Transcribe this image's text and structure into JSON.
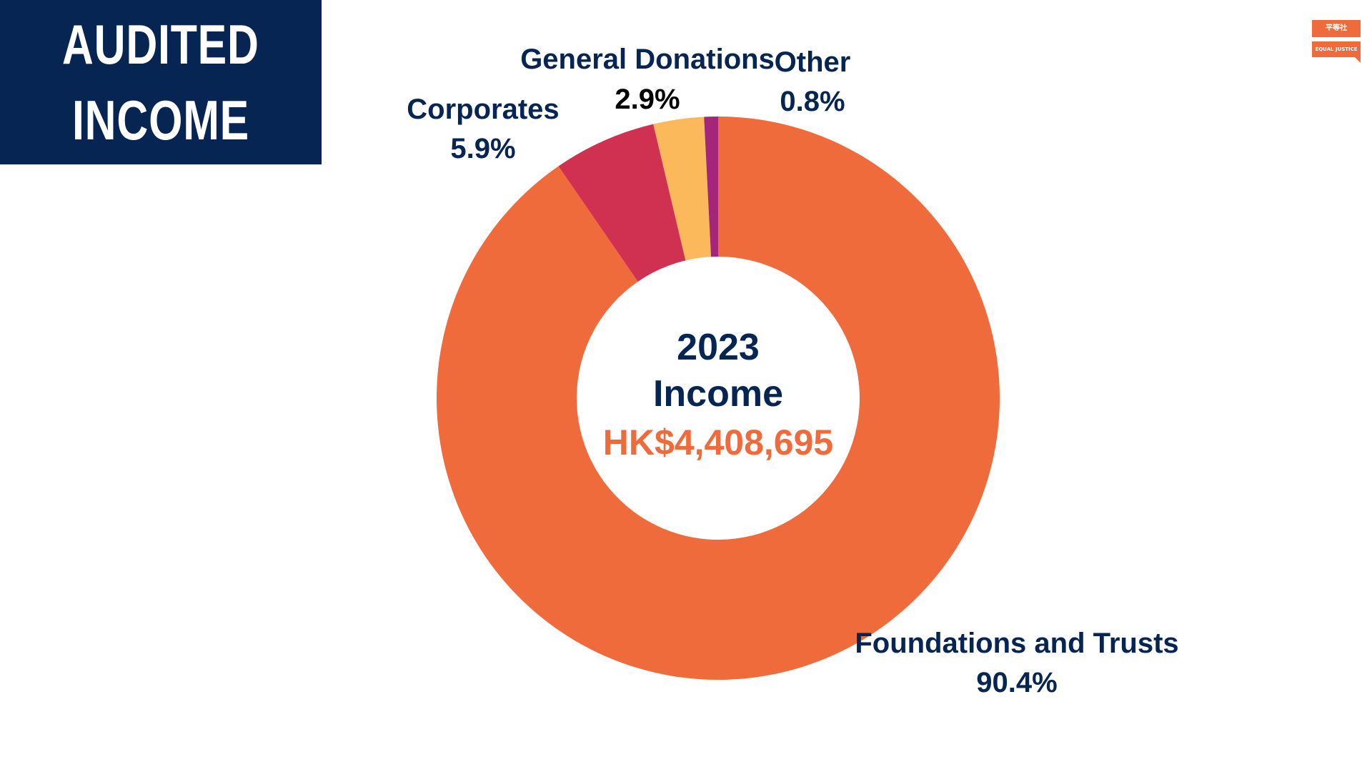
{
  "header": {
    "title_line1": "AUDITED",
    "title_line2": "INCOME"
  },
  "logo": {
    "top_text": "平等社",
    "bottom_text": "EQUAL JUSTICE"
  },
  "colors": {
    "navy": "#062553",
    "brand_orange": "#f06b3b",
    "white": "#ffffff"
  },
  "chart_data": {
    "type": "pie",
    "donut": true,
    "center": {
      "year": "2023",
      "label": "Income",
      "amount": "HK$4,408,695"
    },
    "slices": [
      {
        "name": "Foundations and Trusts",
        "value": 90.4,
        "value_label": "90.4%",
        "color": "#f06b3b"
      },
      {
        "name": "Corporates",
        "value": 5.9,
        "value_label": "5.9%",
        "color": "#d13150"
      },
      {
        "name": "General Donations",
        "value": 2.9,
        "value_label": "2.9%",
        "color": "#fbb95b"
      },
      {
        "name": "Other",
        "value": 0.8,
        "value_label": "0.8%",
        "color": "#a3267a"
      }
    ],
    "start_angle_deg": 0,
    "direction": "clockwise",
    "legend": "none"
  }
}
